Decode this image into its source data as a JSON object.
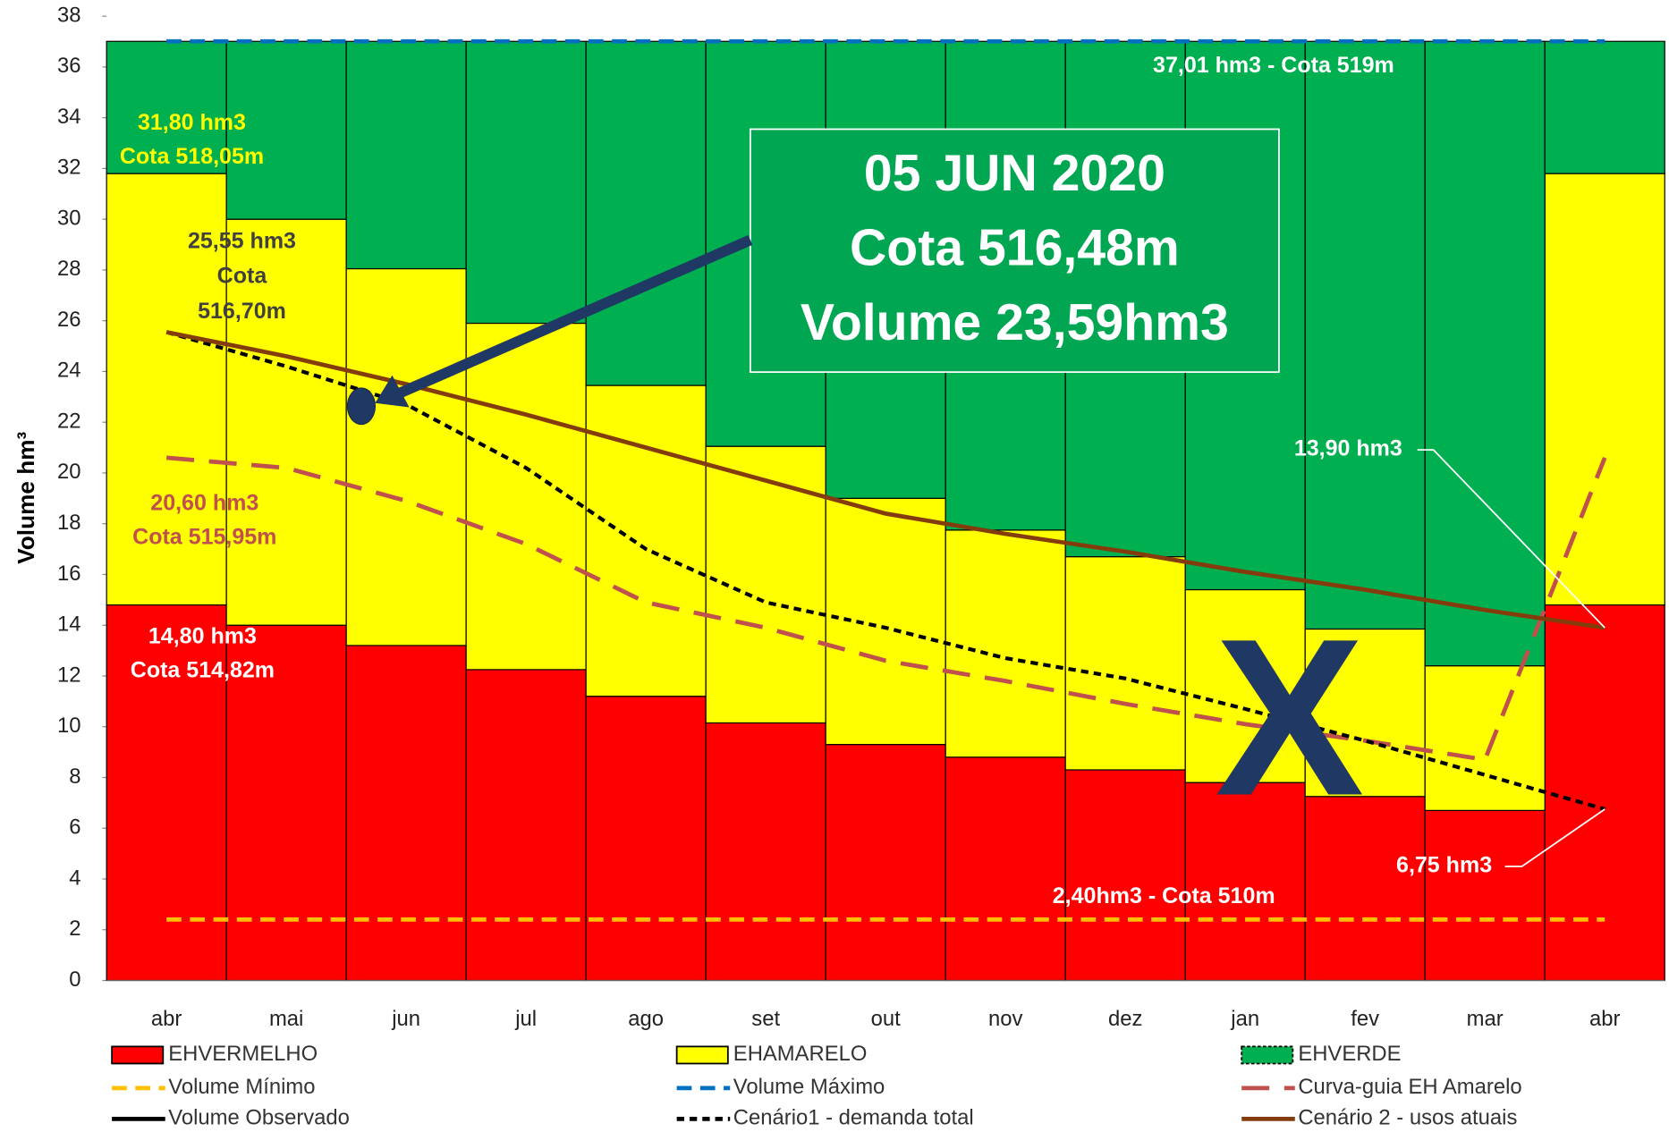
{
  "chart_data": {
    "type": "bar",
    "stacked": true,
    "y_label": "Volume hm³",
    "categories": [
      "abr",
      "mai",
      "jun",
      "jul",
      "ago",
      "set",
      "out",
      "nov",
      "dez",
      "jan",
      "fev",
      "mar",
      "abr"
    ],
    "ylim": [
      0,
      38
    ],
    "yticks": [
      0,
      2,
      4,
      6,
      8,
      10,
      12,
      14,
      16,
      18,
      20,
      22,
      24,
      26,
      28,
      30,
      32,
      34,
      36,
      38
    ],
    "series": [
      {
        "name": "EHVERMELHO",
        "type": "bar",
        "color": "#ff0000",
        "values": [
          14.8,
          14.0,
          13.2,
          12.25,
          11.2,
          10.15,
          9.3,
          8.8,
          8.3,
          7.8,
          7.25,
          6.7,
          14.8
        ]
      },
      {
        "name": "EHAMARELO",
        "type": "bar",
        "color": "#ffff00",
        "values": [
          17.0,
          16.0,
          14.85,
          13.65,
          12.25,
          10.9,
          9.7,
          8.95,
          8.4,
          7.6,
          6.6,
          5.7,
          17.0
        ]
      },
      {
        "name": "EHVERDE",
        "type": "bar",
        "color": "#00b050",
        "values": [
          5.21,
          7.01,
          8.96,
          11.11,
          13.56,
          15.96,
          18.01,
          19.26,
          20.31,
          21.61,
          23.16,
          24.61,
          5.21
        ]
      },
      {
        "name": "Volume Mínimo",
        "type": "line",
        "style": "dashed",
        "color": "#ffc000",
        "values": [
          2.4,
          2.4,
          2.4,
          2.4,
          2.4,
          2.4,
          2.4,
          2.4,
          2.4,
          2.4,
          2.4,
          2.4,
          2.4
        ]
      },
      {
        "name": "Volume Máximo",
        "type": "line",
        "style": "dashed",
        "color": "#0070c0",
        "values": [
          37.01,
          37.01,
          37.01,
          37.01,
          37.01,
          37.01,
          37.01,
          37.01,
          37.01,
          37.01,
          37.01,
          37.01,
          37.01
        ]
      },
      {
        "name": "Curva-guia EH Amarelo",
        "type": "line",
        "style": "longdash",
        "color": "#c0504d",
        "values": [
          20.6,
          20.2,
          18.9,
          17.2,
          14.9,
          13.9,
          12.6,
          11.8,
          10.9,
          10.1,
          9.45,
          8.7,
          20.6
        ]
      },
      {
        "name": "Volume Observado",
        "type": "line",
        "style": "solid",
        "color": "#000000",
        "values": [
          null,
          null,
          null,
          null,
          null,
          null,
          null,
          null,
          null,
          null,
          null,
          null,
          null
        ]
      },
      {
        "name": "Cenário1 - demanda total",
        "type": "line",
        "style": "dotted",
        "color": "#000000",
        "values": [
          25.55,
          24.2,
          22.7,
          20.2,
          17.0,
          14.9,
          13.9,
          12.7,
          11.9,
          10.7,
          9.45,
          8.1,
          6.75
        ]
      },
      {
        "name": "Cenário 2 - usos atuais",
        "type": "line",
        "style": "solid",
        "color": "#843c0c",
        "values": [
          25.55,
          24.6,
          23.5,
          22.3,
          21.0,
          19.7,
          18.4,
          17.6,
          16.9,
          16.1,
          15.4,
          14.6,
          13.9
        ]
      }
    ],
    "annotations": [
      {
        "lines": [
          "37,01 hm3 - Cota 519m"
        ],
        "color": "#ffffff"
      },
      {
        "lines": [
          "31,80 hm3",
          "Cota 518,05m"
        ],
        "color": "#ffff00"
      },
      {
        "lines": [
          "25,55 hm3",
          "Cota",
          "516,70m"
        ],
        "color": "#404040"
      },
      {
        "lines": [
          "20,60 hm3",
          "Cota 515,95m"
        ],
        "color": "#c0504d"
      },
      {
        "lines": [
          "14,80 hm3",
          "Cota 514,82m"
        ],
        "color": "#ffffff"
      },
      {
        "lines": [
          "13,90 hm3"
        ],
        "color": "#ffffff"
      },
      {
        "lines": [
          "6,75 hm3"
        ],
        "color": "#ffffff"
      },
      {
        "lines": [
          "2,40hm3 - Cota  510m"
        ],
        "color": "#ffffff"
      },
      {
        "lines": [
          "05 JUN 2020",
          "Cota 516,48m",
          "Volume 23,59hm3"
        ],
        "color": "#ffffff"
      },
      {
        "lines": [
          "X"
        ],
        "color": "#1f3864"
      }
    ]
  }
}
